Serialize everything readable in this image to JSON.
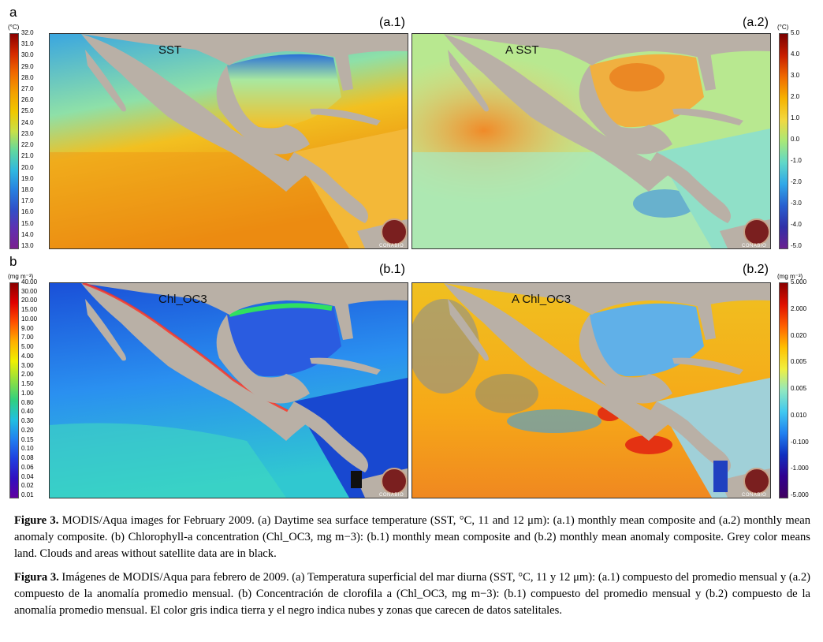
{
  "figure": {
    "panel_a_letter": "a",
    "panel_b_letter": "b",
    "labels": {
      "a1": "(a.1)",
      "a2": "(a.2)",
      "b1": "(b.1)",
      "b2": "(b.2)"
    },
    "map_titles": {
      "a1": "SST",
      "a2": "A SST",
      "b1": "Chl_OC3",
      "b2": "A Chl_OC3"
    },
    "logo_text": "CONABIO",
    "colorbars": {
      "sst": {
        "unit": "(°C)",
        "ticks": [
          "32.0",
          "31.0",
          "30.0",
          "29.0",
          "28.0",
          "27.0",
          "26.0",
          "25.0",
          "24.0",
          "23.0",
          "22.0",
          "21.0",
          "20.0",
          "19.0",
          "18.0",
          "17.0",
          "16.0",
          "15.0",
          "14.0",
          "13.0"
        ]
      },
      "sst_anom": {
        "unit": "(°C)",
        "ticks": [
          "5.0",
          "4.0",
          "3.0",
          "2.0",
          "1.0",
          "0.0",
          "-1.0",
          "-2.0",
          "-3.0",
          "-4.0",
          "-5.0"
        ]
      },
      "chl": {
        "unit": "(mg m⁻³)",
        "ticks": [
          "40.00",
          "30.00",
          "20.00",
          "15.00",
          "10.00",
          "9.00",
          "7.00",
          "5.00",
          "4.00",
          "3.00",
          "2.00",
          "1.50",
          "1.00",
          "0.80",
          "0.40",
          "0.30",
          "0.20",
          "0.15",
          "0.10",
          "0.08",
          "0.06",
          "0.04",
          "0.02",
          "0.01"
        ]
      },
      "chl_anom": {
        "unit": "(mg m⁻³)",
        "ticks": [
          "5.000",
          "2.000",
          "0.020",
          "0.005",
          "0.005",
          "0.010",
          "-0.100",
          "-1.000",
          "-5.000"
        ]
      }
    },
    "caption_en": {
      "label": "Figure 3.",
      "text": " MODIS/Aqua images for February 2009. (a) Daytime sea surface temperature (SST, °C, 11 and 12 μm): (a.1) monthly mean composite and (a.2) monthly mean anomaly composite. (b) Chlorophyll-a concentration (Chl_OC3, mg m−3): (b.1) monthly mean composite and (b.2) monthly mean anomaly composite. Grey color means land. Clouds and areas without satellite data are in black."
    },
    "caption_es": {
      "label": "Figura 3.",
      "text": " Imágenes de MODIS/Aqua para febrero de 2009. (a) Temperatura superficial del mar diurna (SST, °C, 11 y 12 μm): (a.1) compuesto del promedio mensual y (a.2) compuesto de la anomalía promedio mensual. (b) Concentración de clorofila a (Chl_OC3, mg m−3): (b.1) compuesto del promedio mensual y (b.2) compuesto de la anomalía promedio mensual. El color gris indica tierra y el negro indica nubes y zonas que carecen de datos satelitales."
    }
  }
}
